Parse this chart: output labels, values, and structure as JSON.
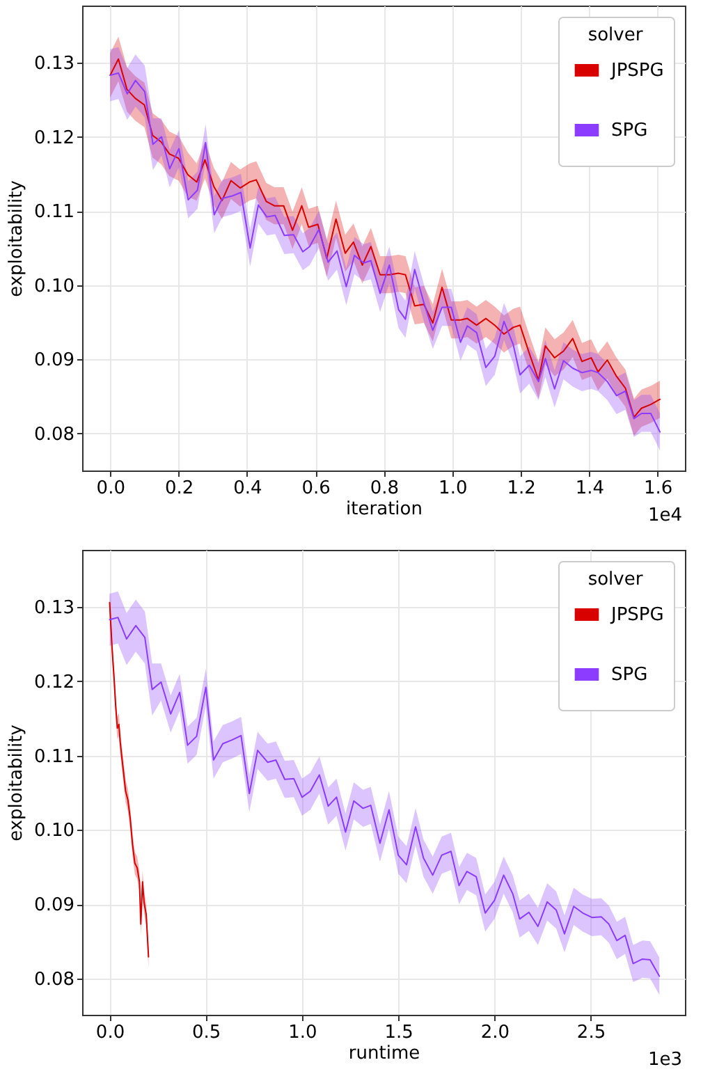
{
  "chart_data": [
    {
      "type": "line",
      "xlabel": "iteration",
      "ylabel": "exploitability",
      "legend_title": "solver",
      "legend": "top right",
      "grid": true,
      "annotations": [
        "1e4"
      ],
      "xlim": [
        -0.082,
        1.68
      ],
      "xticks": [
        {
          "value": 0,
          "label": "0.0"
        },
        {
          "value": 0.2,
          "label": "0.2"
        },
        {
          "value": 0.4,
          "label": "0.4"
        },
        {
          "value": 0.6,
          "label": "0.6"
        },
        {
          "value": 0.8,
          "label": "0.8"
        },
        {
          "value": 1,
          "label": "1.0"
        },
        {
          "value": 1.2,
          "label": "1.2"
        },
        {
          "value": 1.4,
          "label": "1.4"
        },
        {
          "value": 1.6,
          "label": "1.6"
        }
      ],
      "ylim": [
        0.075,
        0.1377
      ],
      "yticks": [
        0.08,
        0.09,
        {
          "value": 0.1,
          "label": "0.10"
        },
        0.11,
        0.12,
        0.13
      ],
      "series": [
        {
          "name": "JPSPG",
          "color": "#d90000",
          "x": [
            0,
            0.024,
            0.049,
            0.073,
            0.1,
            0.124,
            0.149,
            0.173,
            0.2,
            0.227,
            0.253,
            0.277,
            0.303,
            0.327,
            0.353,
            0.38,
            0.407,
            0.427,
            0.456,
            0.48,
            0.507,
            0.533,
            0.56,
            0.58,
            0.607,
            0.633,
            0.66,
            0.687,
            0.711,
            0.737,
            0.762,
            0.789,
            0.816,
            0.843,
            0.863,
            0.89,
            0.917,
            0.943,
            0.97,
            0.997,
            1.024,
            1.044,
            1.071,
            1.098,
            1.124,
            1.151,
            1.178,
            1.198,
            1.225,
            1.252,
            1.272,
            1.299,
            1.325,
            1.352,
            1.379,
            1.406,
            1.426,
            1.453,
            1.48,
            1.506,
            1.531,
            1.553,
            1.58,
            1.607
          ],
          "values": [
            0.1283,
            0.1305,
            0.1264,
            0.1252,
            0.1243,
            0.1202,
            0.1193,
            0.1177,
            0.1171,
            0.1149,
            0.1139,
            0.1169,
            0.1133,
            0.1114,
            0.1141,
            0.1131,
            0.1139,
            0.1142,
            0.1113,
            0.1107,
            0.1107,
            0.1074,
            0.1107,
            0.1078,
            0.1082,
            0.1036,
            0.1089,
            0.1043,
            0.1058,
            0.1027,
            0.1052,
            0.1014,
            0.1014,
            0.1016,
            0.1014,
            0.0972,
            0.0974,
            0.0949,
            0.0997,
            0.0953,
            0.0953,
            0.0955,
            0.0946,
            0.0955,
            0.0946,
            0.0934,
            0.0943,
            0.0946,
            0.0908,
            0.0872,
            0.0918,
            0.0902,
            0.0911,
            0.0928,
            0.0897,
            0.0902,
            0.0883,
            0.0899,
            0.0877,
            0.0861,
            0.0822,
            0.0834,
            0.0839,
            0.0846
          ],
          "lower": [
            0.1253,
            0.1275,
            0.1234,
            0.1222,
            0.1213,
            0.1172,
            0.1163,
            0.1147,
            0.1141,
            0.1119,
            0.1114,
            0.1144,
            0.1108,
            0.1089,
            0.1116,
            0.1106,
            0.1114,
            0.1117,
            0.1088,
            0.1082,
            0.1082,
            0.1049,
            0.1082,
            0.1053,
            0.1057,
            0.1011,
            0.1064,
            0.1018,
            0.1033,
            0.1002,
            0.1027,
            0.0989,
            0.0989,
            0.0991,
            0.0989,
            0.0947,
            0.0949,
            0.0924,
            0.0972,
            0.0928,
            0.0928,
            0.093,
            0.0921,
            0.093,
            0.0921,
            0.0909,
            0.0918,
            0.0921,
            0.0883,
            0.0847,
            0.0893,
            0.0877,
            0.0886,
            0.0903,
            0.0872,
            0.0877,
            0.0858,
            0.0874,
            0.0852,
            0.0836,
            0.0797,
            0.0809,
            0.0814,
            0.0821
          ],
          "upper": [
            0.1313,
            0.1335,
            0.1294,
            0.1282,
            0.1273,
            0.1232,
            0.1223,
            0.1207,
            0.1201,
            0.1179,
            0.1164,
            0.1194,
            0.1158,
            0.1139,
            0.1166,
            0.1156,
            0.1164,
            0.1167,
            0.1138,
            0.1132,
            0.1132,
            0.1099,
            0.1132,
            0.1103,
            0.1107,
            0.1061,
            0.1114,
            0.1068,
            0.1083,
            0.1052,
            0.1077,
            0.1039,
            0.1039,
            0.1041,
            0.1039,
            0.0997,
            0.0999,
            0.0974,
            0.1022,
            0.0978,
            0.0978,
            0.098,
            0.0971,
            0.098,
            0.0971,
            0.0959,
            0.0968,
            0.0971,
            0.0933,
            0.0897,
            0.0943,
            0.0927,
            0.0936,
            0.0953,
            0.0922,
            0.0927,
            0.0908,
            0.0924,
            0.0902,
            0.0886,
            0.0847,
            0.0859,
            0.0864,
            0.0871
          ]
        },
        {
          "name": "SPG",
          "color": "#8c3cff",
          "x": [
            0,
            0.024,
            0.05,
            0.074,
            0.101,
            0.125,
            0.15,
            0.174,
            0.201,
            0.228,
            0.255,
            0.279,
            0.304,
            0.328,
            0.355,
            0.382,
            0.409,
            0.433,
            0.458,
            0.482,
            0.509,
            0.536,
            0.563,
            0.583,
            0.61,
            0.637,
            0.663,
            0.69,
            0.714,
            0.741,
            0.762,
            0.789,
            0.816,
            0.843,
            0.863,
            0.89,
            0.917,
            0.943,
            0.97,
            0.997,
            1.024,
            1.044,
            1.071,
            1.098,
            1.124,
            1.151,
            1.178,
            1.198,
            1.225,
            1.252,
            1.272,
            1.299,
            1.325,
            1.352,
            1.379,
            1.406,
            1.426,
            1.453,
            1.48,
            1.506,
            1.531,
            1.553,
            1.58,
            1.607
          ],
          "values": [
            0.1283,
            0.1286,
            0.1258,
            0.1276,
            0.1261,
            0.119,
            0.12,
            0.1157,
            0.1184,
            0.1115,
            0.1128,
            0.1192,
            0.1095,
            0.1117,
            0.112,
            0.1125,
            0.105,
            0.1108,
            0.1092,
            0.1094,
            0.1067,
            0.1068,
            0.1045,
            0.1052,
            0.1075,
            0.1031,
            0.1046,
            0.0998,
            0.104,
            0.103,
            0.1033,
            0.0989,
            0.1027,
            0.0967,
            0.0954,
            0.1021,
            0.0976,
            0.0939,
            0.097,
            0.097,
            0.0923,
            0.0945,
            0.0936,
            0.0889,
            0.0904,
            0.0951,
            0.092,
            0.0879,
            0.0892,
            0.087,
            0.0901,
            0.086,
            0.0898,
            0.0888,
            0.0882,
            0.0885,
            0.0882,
            0.087,
            0.0851,
            0.0857,
            0.082,
            0.0827,
            0.0827,
            0.0802
          ],
          "lower": [
            0.1248,
            0.1251,
            0.1223,
            0.1241,
            0.1226,
            0.1155,
            0.1175,
            0.1132,
            0.1159,
            0.109,
            0.1103,
            0.1167,
            0.107,
            0.1092,
            0.1095,
            0.11,
            0.1025,
            0.1083,
            0.1067,
            0.1069,
            0.1042,
            0.1043,
            0.102,
            0.1027,
            0.105,
            0.1006,
            0.1021,
            0.0973,
            0.1015,
            0.1005,
            0.1008,
            0.0964,
            0.1002,
            0.0942,
            0.0929,
            0.0996,
            0.0951,
            0.0914,
            0.0945,
            0.0945,
            0.0898,
            0.092,
            0.0911,
            0.0864,
            0.0879,
            0.0926,
            0.0895,
            0.0854,
            0.0867,
            0.0845,
            0.0876,
            0.0835,
            0.0873,
            0.0863,
            0.0857,
            0.086,
            0.0857,
            0.0845,
            0.0826,
            0.0832,
            0.0795,
            0.0802,
            0.0802,
            0.0777
          ],
          "upper": [
            0.1318,
            0.1321,
            0.1293,
            0.1311,
            0.1296,
            0.1225,
            0.1225,
            0.1182,
            0.1209,
            0.114,
            0.1153,
            0.1217,
            0.112,
            0.1142,
            0.1145,
            0.115,
            0.1075,
            0.1133,
            0.1117,
            0.1119,
            0.1092,
            0.1093,
            0.107,
            0.1077,
            0.11,
            0.1056,
            0.1071,
            0.1023,
            0.1065,
            0.1055,
            0.1058,
            0.1014,
            0.1052,
            0.0992,
            0.0979,
            0.1046,
            0.1001,
            0.0964,
            0.0995,
            0.0995,
            0.0948,
            0.097,
            0.0961,
            0.0914,
            0.0929,
            0.0976,
            0.0945,
            0.0904,
            0.0917,
            0.0895,
            0.0926,
            0.0885,
            0.0923,
            0.0913,
            0.0907,
            0.091,
            0.0907,
            0.0895,
            0.0876,
            0.0882,
            0.0845,
            0.0852,
            0.0852,
            0.0827
          ]
        }
      ]
    },
    {
      "type": "line",
      "xlabel": "runtime",
      "ylabel": "exploitability",
      "legend_title": "solver",
      "legend": "top right",
      "grid": true,
      "annotations": [
        "1e3"
      ],
      "xlim": [
        -0.143,
        2.99
      ],
      "xticks": [
        {
          "value": 0,
          "label": "0.0"
        },
        {
          "value": 0.5,
          "label": "0.5"
        },
        {
          "value": 1,
          "label": "1.0"
        },
        {
          "value": 1.5,
          "label": "1.5"
        },
        {
          "value": 2,
          "label": "2.0"
        },
        {
          "value": 2.5,
          "label": "2.5"
        }
      ],
      "ylim": [
        0.0751,
        0.1377
      ],
      "yticks": [
        0.08,
        0.09,
        {
          "value": 0.1,
          "label": "0.10"
        },
        0.11,
        0.12,
        0.13
      ],
      "series": [
        {
          "name": "JPSPG",
          "color": "#d90000",
          "x": [
            0,
            0.012,
            0.024,
            0.031,
            0.04,
            0.048,
            0.055,
            0.064,
            0.071,
            0.083,
            0.095,
            0.107,
            0.119,
            0.131,
            0.143,
            0.155,
            0.162,
            0.171,
            0.179,
            0.19,
            0.202
          ],
          "values": [
            0.1306,
            0.1247,
            0.12,
            0.1168,
            0.1137,
            0.1142,
            0.1118,
            0.1096,
            0.108,
            0.1052,
            0.104,
            0.1015,
            0.098,
            0.0955,
            0.0949,
            0.093,
            0.0873,
            0.093,
            0.0902,
            0.0886,
            0.0829
          ],
          "lower": [
            0.1291,
            0.1232,
            0.1185,
            0.1153,
            0.1122,
            0.1127,
            0.1103,
            0.1081,
            0.1065,
            0.1037,
            0.1025,
            0.1,
            0.0965,
            0.094,
            0.0934,
            0.0915,
            0.0858,
            0.0915,
            0.0887,
            0.0871,
            0.0814
          ],
          "upper": [
            0.1321,
            0.1262,
            0.1215,
            0.1183,
            0.1152,
            0.1157,
            0.1133,
            0.1111,
            0.1095,
            0.1067,
            0.1055,
            0.103,
            0.0995,
            0.097,
            0.0964,
            0.0945,
            0.0888,
            0.0945,
            0.0917,
            0.0901,
            0.0844
          ]
        },
        {
          "name": "SPG",
          "color": "#8c3cff",
          "x": [
            0,
            0.043,
            0.088,
            0.136,
            0.183,
            0.221,
            0.267,
            0.317,
            0.364,
            0.405,
            0.452,
            0.5,
            0.54,
            0.588,
            0.636,
            0.683,
            0.726,
            0.769,
            0.821,
            0.864,
            0.91,
            0.957,
            1.0,
            1.043,
            1.09,
            1.136,
            1.179,
            1.226,
            1.269,
            1.317,
            1.357,
            1.405,
            1.452,
            1.5,
            1.543,
            1.59,
            1.631,
            1.679,
            1.726,
            1.774,
            1.816,
            1.857,
            1.905,
            1.952,
            2.0,
            2.048,
            2.095,
            2.131,
            2.179,
            2.226,
            2.274,
            2.321,
            2.364,
            2.412,
            2.459,
            2.507,
            2.555,
            2.595,
            2.636,
            2.679,
            2.721,
            2.769,
            2.809,
            2.857
          ],
          "values": [
            0.1283,
            0.1286,
            0.1257,
            0.1275,
            0.1259,
            0.1189,
            0.1199,
            0.1156,
            0.1185,
            0.1114,
            0.1126,
            0.1192,
            0.1094,
            0.1116,
            0.1121,
            0.1127,
            0.1049,
            0.1107,
            0.1091,
            0.1094,
            0.1068,
            0.1069,
            0.1044,
            0.1052,
            0.1074,
            0.1032,
            0.1044,
            0.0997,
            0.1039,
            0.1029,
            0.1033,
            0.0982,
            0.1027,
            0.0966,
            0.0953,
            0.1004,
            0.0962,
            0.0939,
            0.0966,
            0.0971,
            0.0925,
            0.0944,
            0.0937,
            0.0888,
            0.0905,
            0.0939,
            0.0914,
            0.088,
            0.0889,
            0.087,
            0.0903,
            0.0892,
            0.086,
            0.0897,
            0.0888,
            0.0882,
            0.0883,
            0.0873,
            0.0851,
            0.0858,
            0.082,
            0.0826,
            0.0825,
            0.0803
          ],
          "lower": [
            0.1248,
            0.1251,
            0.1222,
            0.124,
            0.1224,
            0.1154,
            0.1174,
            0.1131,
            0.116,
            0.1089,
            0.1101,
            0.1167,
            0.1069,
            0.1091,
            0.1096,
            0.1102,
            0.1024,
            0.1082,
            0.1066,
            0.1069,
            0.1043,
            0.1044,
            0.1019,
            0.1027,
            0.1049,
            0.1007,
            0.1019,
            0.0972,
            0.1014,
            0.1004,
            0.1008,
            0.0957,
            0.1002,
            0.0941,
            0.0928,
            0.0979,
            0.0937,
            0.0914,
            0.0941,
            0.0946,
            0.09,
            0.0919,
            0.0912,
            0.0863,
            0.088,
            0.0914,
            0.0889,
            0.0855,
            0.0864,
            0.0845,
            0.0878,
            0.0867,
            0.0835,
            0.0872,
            0.0863,
            0.0857,
            0.0858,
            0.0848,
            0.0826,
            0.0833,
            0.0795,
            0.0801,
            0.08,
            0.0778
          ],
          "upper": [
            0.1318,
            0.1321,
            0.1292,
            0.131,
            0.1294,
            0.1224,
            0.1224,
            0.1181,
            0.121,
            0.1139,
            0.1151,
            0.1217,
            0.1119,
            0.1141,
            0.1146,
            0.1152,
            0.1074,
            0.1132,
            0.1116,
            0.1119,
            0.1093,
            0.1094,
            0.1069,
            0.1077,
            0.1099,
            0.1057,
            0.1069,
            0.1022,
            0.1064,
            0.1054,
            0.1058,
            0.1007,
            0.1052,
            0.0991,
            0.0978,
            0.1029,
            0.0987,
            0.0964,
            0.0991,
            0.0996,
            0.095,
            0.0969,
            0.0962,
            0.0913,
            0.093,
            0.0964,
            0.0939,
            0.0905,
            0.0914,
            0.0895,
            0.0928,
            0.0917,
            0.0885,
            0.0922,
            0.0913,
            0.0907,
            0.0908,
            0.0898,
            0.0876,
            0.0883,
            0.0845,
            0.0851,
            0.085,
            0.0828
          ]
        }
      ]
    }
  ]
}
